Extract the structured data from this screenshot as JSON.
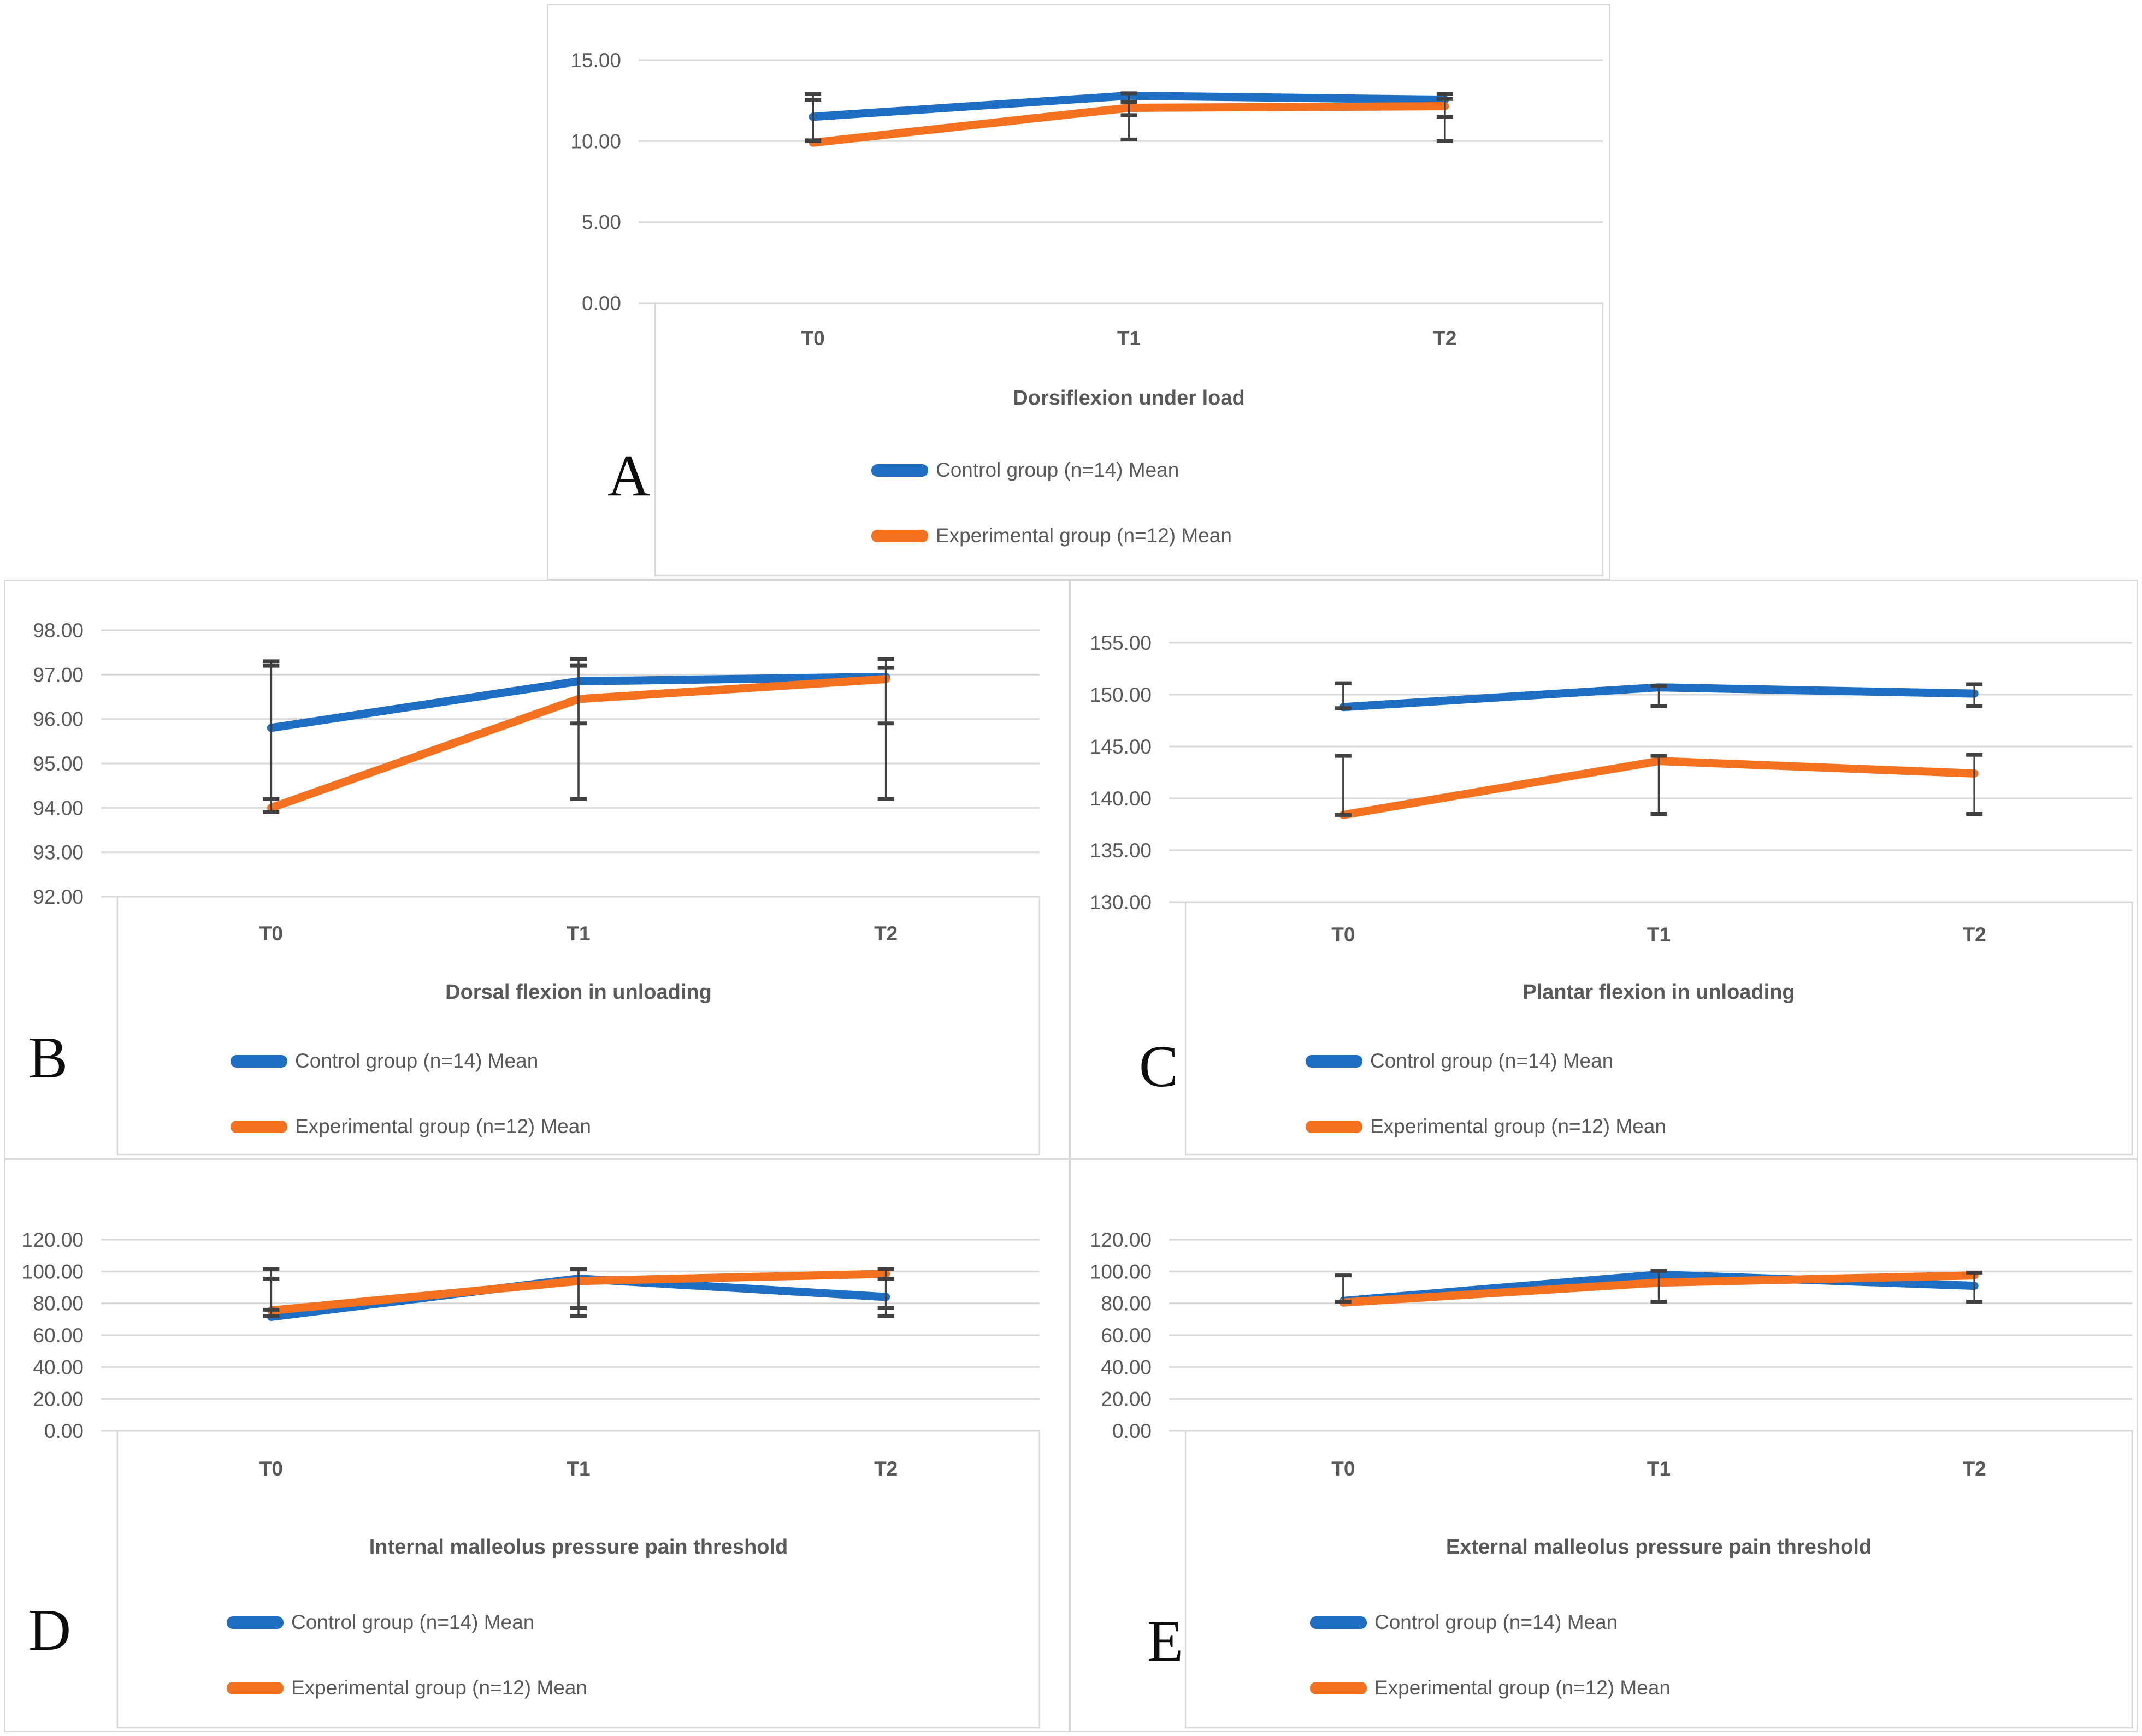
{
  "colors": {
    "control_line": "#1E6FC4",
    "experimental_line": "#F4711F",
    "gridline": "#D9D9D9",
    "panel_border": "#D9D9D9",
    "axis_text": "#595959",
    "title_text": "#595959",
    "error_bar": "#404040"
  },
  "legend": {
    "control_label": "Control group (n=14) Mean",
    "experimental_label": "Experimental group (n=12) Mean"
  },
  "chart_data": [
    {
      "id": "A",
      "type": "line",
      "panel_label": "A",
      "title": "Dorsiflexion under load",
      "categories": [
        "T0",
        "T1",
        "T2"
      ],
      "ylim": [
        0,
        15
      ],
      "grid": true,
      "legend_position": "below",
      "yticks": [
        {
          "v": 0,
          "label": "0.00"
        },
        {
          "v": 5,
          "label": "5.00"
        },
        {
          "v": 10,
          "label": "10.00"
        },
        {
          "v": 15,
          "label": "15.00"
        }
      ],
      "series": [
        {
          "name": "Control group (n=14) Mean",
          "color_key": "control_line",
          "values": [
            11.5,
            12.8,
            12.55
          ]
        },
        {
          "name": "Experimental group (n=12) Mean",
          "color_key": "experimental_line",
          "values": [
            9.9,
            12.05,
            12.15
          ]
        }
      ],
      "error_bars": [
        {
          "x": 0,
          "low": 10.0,
          "high": 12.9
        },
        {
          "x": 0,
          "low": 10.05,
          "high": 12.55
        },
        {
          "x": 1,
          "low": 10.1,
          "high": 12.4
        },
        {
          "x": 1,
          "low": 11.6,
          "high": 12.95
        },
        {
          "x": 2,
          "low": 10.0,
          "high": 12.9
        },
        {
          "x": 2,
          "low": 11.5,
          "high": 12.6
        }
      ]
    },
    {
      "id": "B",
      "type": "line",
      "panel_label": "B",
      "title": "Dorsal flexion in unloading",
      "categories": [
        "T0",
        "T1",
        "T2"
      ],
      "ylim": [
        92,
        98
      ],
      "grid": true,
      "legend_position": "below",
      "yticks": [
        {
          "v": 92,
          "label": "92.00"
        },
        {
          "v": 93,
          "label": "93.00"
        },
        {
          "v": 94,
          "label": "94.00"
        },
        {
          "v": 95,
          "label": "95.00"
        },
        {
          "v": 96,
          "label": "96.00"
        },
        {
          "v": 97,
          "label": "97.00"
        },
        {
          "v": 98,
          "label": "98.00"
        }
      ],
      "series": [
        {
          "name": "Control group (n=14) Mean",
          "color_key": "control_line",
          "values": [
            95.8,
            96.85,
            96.95
          ]
        },
        {
          "name": "Experimental group (n=12) Mean",
          "color_key": "experimental_line",
          "values": [
            94.0,
            96.45,
            96.9
          ]
        }
      ],
      "error_bars": [
        {
          "x": 0,
          "low": 94.2,
          "high": 97.3
        },
        {
          "x": 0,
          "low": 93.9,
          "high": 97.2
        },
        {
          "x": 1,
          "low": 94.2,
          "high": 97.35
        },
        {
          "x": 1,
          "low": 95.9,
          "high": 97.2
        },
        {
          "x": 2,
          "low": 94.2,
          "high": 97.35
        },
        {
          "x": 2,
          "low": 95.9,
          "high": 97.15
        }
      ]
    },
    {
      "id": "C",
      "type": "line",
      "panel_label": "C",
      "title": "Plantar flexion in unloading",
      "categories": [
        "T0",
        "T1",
        "T2"
      ],
      "ylim": [
        130,
        155
      ],
      "grid": true,
      "legend_position": "below",
      "yticks": [
        {
          "v": 130,
          "label": "130.00"
        },
        {
          "v": 135,
          "label": "135.00"
        },
        {
          "v": 140,
          "label": "140.00"
        },
        {
          "v": 145,
          "label": "145.00"
        },
        {
          "v": 150,
          "label": "150.00"
        },
        {
          "v": 155,
          "label": "155.00"
        }
      ],
      "series": [
        {
          "name": "Control group (n=14) Mean",
          "color_key": "control_line",
          "values": [
            148.8,
            150.7,
            150.1
          ]
        },
        {
          "name": "Experimental group (n=12) Mean",
          "color_key": "experimental_line",
          "values": [
            138.4,
            143.6,
            142.4
          ]
        }
      ],
      "error_bars": [
        {
          "x": 0,
          "low": 148.7,
          "high": 151.1
        },
        {
          "x": 0,
          "low": 138.4,
          "high": 144.1
        },
        {
          "x": 1,
          "low": 148.9,
          "high": 150.85
        },
        {
          "x": 1,
          "low": 138.5,
          "high": 144.1
        },
        {
          "x": 2,
          "low": 148.9,
          "high": 151.0
        },
        {
          "x": 2,
          "low": 138.5,
          "high": 144.2
        }
      ]
    },
    {
      "id": "D",
      "type": "line",
      "panel_label": "D",
      "title": "Internal malleolus pressure pain threshold",
      "categories": [
        "T0",
        "T1",
        "T2"
      ],
      "ylim": [
        0,
        120
      ],
      "grid": true,
      "legend_position": "below",
      "yticks": [
        {
          "v": 0,
          "label": "0.00"
        },
        {
          "v": 20,
          "label": "20.00"
        },
        {
          "v": 40,
          "label": "40.00"
        },
        {
          "v": 60,
          "label": "60.00"
        },
        {
          "v": 80,
          "label": "80.00"
        },
        {
          "v": 100,
          "label": "100.00"
        },
        {
          "v": 120,
          "label": "120.00"
        }
      ],
      "series": [
        {
          "name": "Control group (n=14) Mean",
          "color_key": "control_line",
          "values": [
            71.5,
            95.5,
            84.0
          ]
        },
        {
          "name": "Experimental group (n=12) Mean",
          "color_key": "experimental_line",
          "values": [
            75.5,
            94.0,
            98.5
          ]
        }
      ],
      "error_bars": [
        {
          "x": 0,
          "low": 72,
          "high": 95.5
        },
        {
          "x": 0,
          "low": 76,
          "high": 101.5
        },
        {
          "x": 1,
          "low": 72,
          "high": 101.5
        },
        {
          "x": 1,
          "low": 77,
          "high": 101.5
        },
        {
          "x": 2,
          "low": 72,
          "high": 95.5
        },
        {
          "x": 2,
          "low": 77,
          "high": 101.5
        }
      ]
    },
    {
      "id": "E",
      "type": "line",
      "panel_label": "E",
      "title": "External malleolus pressure pain threshold",
      "categories": [
        "T0",
        "T1",
        "T2"
      ],
      "ylim": [
        0,
        120
      ],
      "grid": true,
      "legend_position": "below",
      "yticks": [
        {
          "v": 0,
          "label": "0.00"
        },
        {
          "v": 20,
          "label": "20.00"
        },
        {
          "v": 40,
          "label": "40.00"
        },
        {
          "v": 60,
          "label": "60.00"
        },
        {
          "v": 80,
          "label": "80.00"
        },
        {
          "v": 100,
          "label": "100.00"
        },
        {
          "v": 120,
          "label": "120.00"
        }
      ],
      "series": [
        {
          "name": "Control group (n=14) Mean",
          "color_key": "control_line",
          "values": [
            81.5,
            98.0,
            91.0
          ]
        },
        {
          "name": "Experimental group (n=12) Mean",
          "color_key": "experimental_line",
          "values": [
            80.5,
            93.0,
            97.5
          ]
        }
      ],
      "error_bars": [
        {
          "x": 0,
          "low": 81,
          "high": 97.5
        },
        {
          "x": 1,
          "low": 81,
          "high": 100.3
        },
        {
          "x": 2,
          "low": 81,
          "high": 99.3
        }
      ]
    }
  ]
}
